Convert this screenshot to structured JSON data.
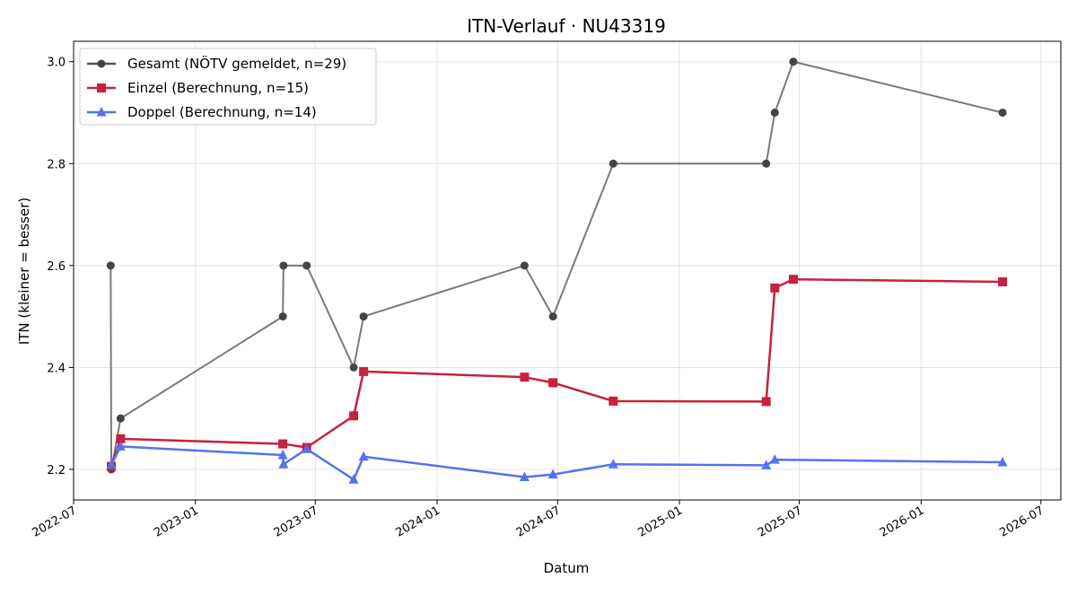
{
  "chart_data": {
    "type": "line",
    "title": "ITN-Verlauf · NU43319",
    "xlabel": "Datum",
    "ylabel": "ITN  (kleiner = besser)",
    "x_axis_type": "date",
    "xlim": [
      "2022-07-01",
      "2026-07-31"
    ],
    "ylim": [
      2.14,
      3.04
    ],
    "x_ticks": [
      "2022-07",
      "2023-01",
      "2023-07",
      "2024-01",
      "2024-07",
      "2025-01",
      "2025-07",
      "2026-01",
      "2026-07"
    ],
    "y_ticks": [
      "2.2",
      "2.4",
      "2.6",
      "2.8",
      "3.0"
    ],
    "grid": true,
    "legend_position": "upper-left",
    "series": [
      {
        "name": "Gesamt (NÖTV gemeldet, n=29)",
        "color": "#555555",
        "marker": "circle",
        "points": [
          [
            "2022-08-26",
            2.6
          ],
          [
            "2022-08-27",
            2.2
          ],
          [
            "2022-09-10",
            2.3
          ],
          [
            "2023-05-13",
            2.5
          ],
          [
            "2023-05-14",
            2.6
          ],
          [
            "2023-06-18",
            2.6
          ],
          [
            "2023-08-28",
            2.4
          ],
          [
            "2023-09-12",
            2.5
          ],
          [
            "2024-05-12",
            2.6
          ],
          [
            "2024-06-24",
            2.5
          ],
          [
            "2024-09-23",
            2.8
          ],
          [
            "2025-05-12",
            2.8
          ],
          [
            "2025-05-25",
            2.9
          ],
          [
            "2025-06-22",
            3.0
          ],
          [
            "2026-05-04",
            2.9
          ]
        ]
      },
      {
        "name": "Einzel (Berechnung, n=15)",
        "color": "#c8203d",
        "marker": "square",
        "points": [
          [
            "2022-08-27",
            2.206
          ],
          [
            "2022-09-10",
            2.26
          ],
          [
            "2023-05-13",
            2.25
          ],
          [
            "2023-06-18",
            2.243
          ],
          [
            "2023-08-28",
            2.305
          ],
          [
            "2023-09-12",
            2.392
          ],
          [
            "2024-05-12",
            2.381
          ],
          [
            "2024-06-24",
            2.37
          ],
          [
            "2024-09-23",
            2.334
          ],
          [
            "2025-05-12",
            2.333
          ],
          [
            "2025-05-25",
            2.556
          ],
          [
            "2025-06-22",
            2.573
          ],
          [
            "2026-05-04",
            2.568
          ]
        ]
      },
      {
        "name": "Doppel (Berechnung, n=14)",
        "color": "#5572ee",
        "marker": "triangle",
        "points": [
          [
            "2022-08-27",
            2.209
          ],
          [
            "2022-09-10",
            2.245
          ],
          [
            "2023-05-13",
            2.228
          ],
          [
            "2023-05-14",
            2.21
          ],
          [
            "2023-06-18",
            2.24
          ],
          [
            "2023-08-28",
            2.18
          ],
          [
            "2023-09-12",
            2.225
          ],
          [
            "2024-05-12",
            2.185
          ],
          [
            "2024-06-24",
            2.19
          ],
          [
            "2024-09-23",
            2.21
          ],
          [
            "2025-05-12",
            2.208
          ],
          [
            "2025-05-25",
            2.219
          ],
          [
            "2026-05-04",
            2.214
          ]
        ]
      }
    ]
  }
}
